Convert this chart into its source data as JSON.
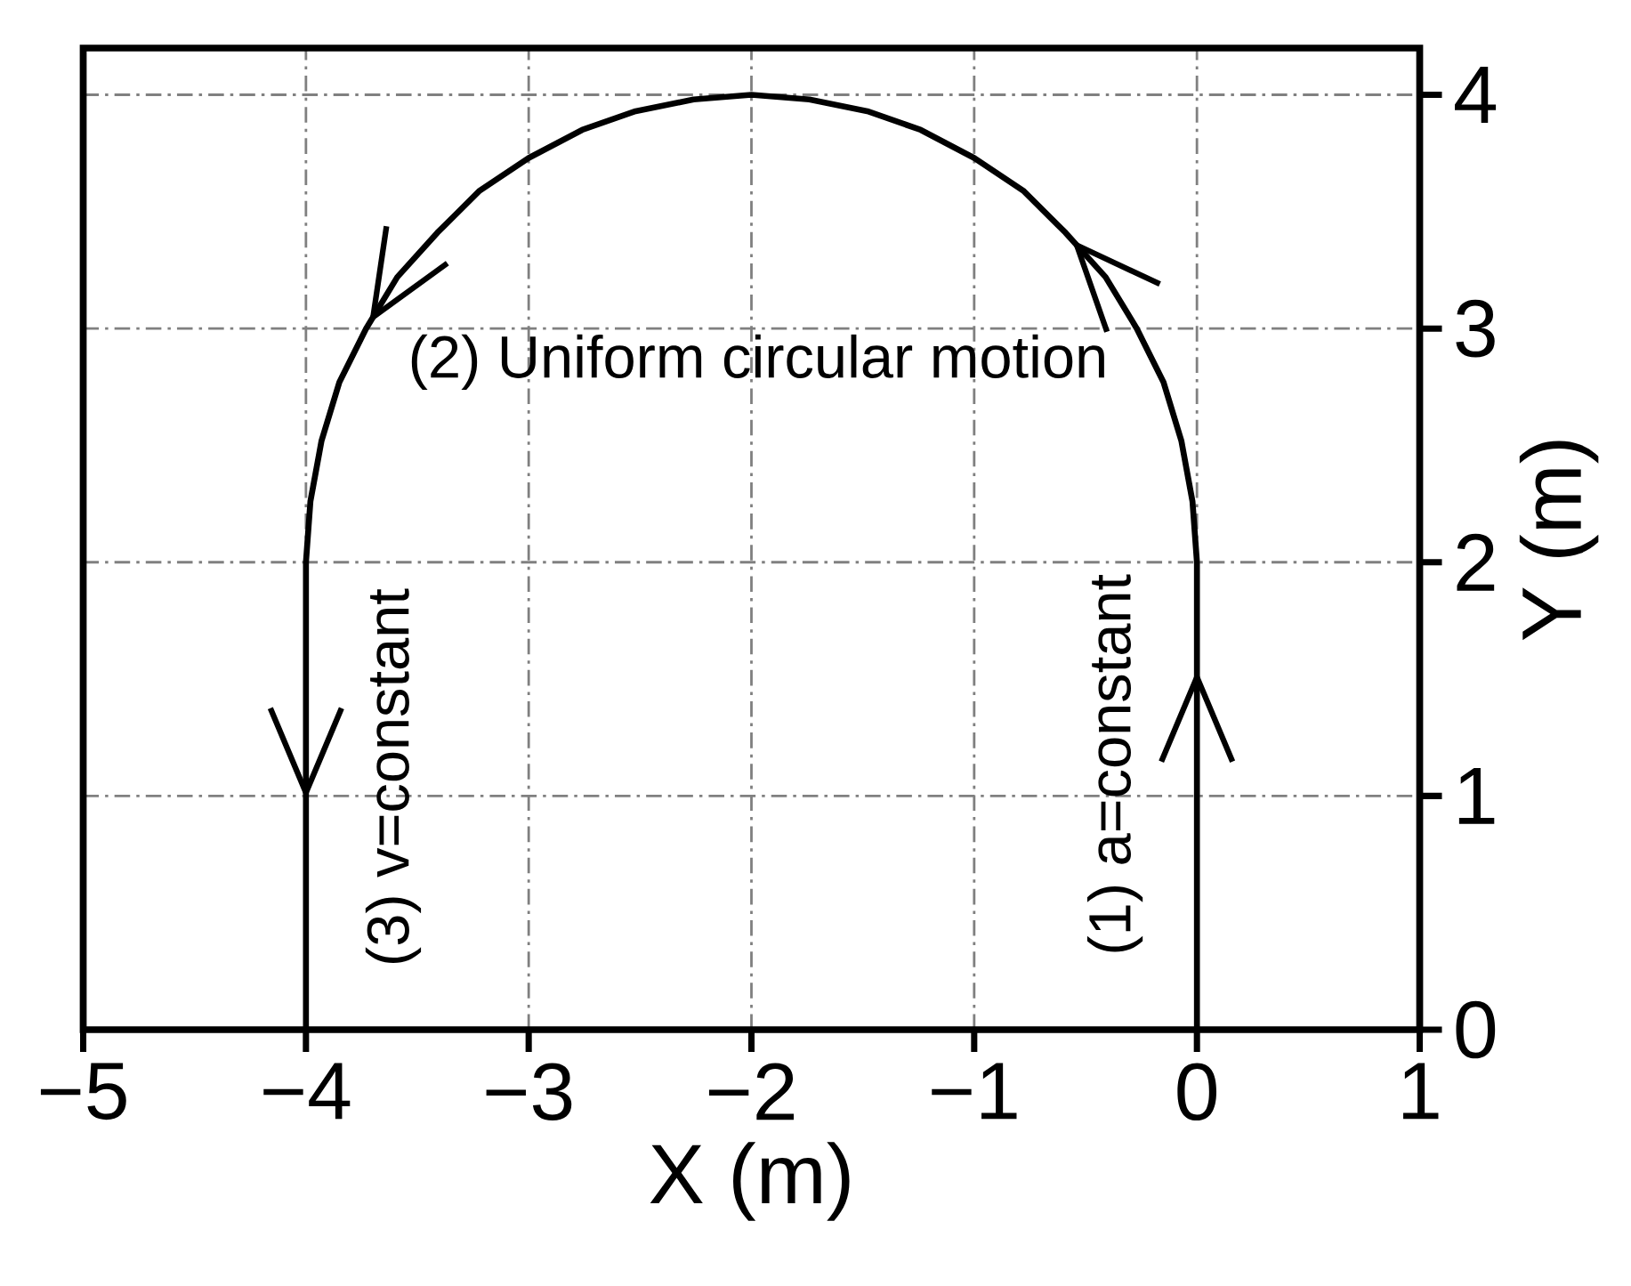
{
  "chart_data": {
    "type": "line",
    "xlabel": "X (m)",
    "ylabel": "Y (m)",
    "xlim": [
      -5,
      1
    ],
    "ylim": [
      0,
      4.2
    ],
    "xticks": [
      {
        "value": -5,
        "label": "−5"
      },
      {
        "value": -4,
        "label": "−4"
      },
      {
        "value": -3,
        "label": "−3"
      },
      {
        "value": -2,
        "label": "−2"
      },
      {
        "value": -1,
        "label": "−1"
      },
      0,
      1
    ],
    "yticks": [
      0,
      1,
      2,
      3,
      4
    ],
    "grid": true,
    "series": [
      {
        "color": "#000000",
        "x": [
          0,
          0,
          -0.02,
          -0.07,
          -0.15,
          -0.27,
          -0.41,
          -0.59,
          -0.78,
          -1.0,
          -1.24,
          -1.48,
          -1.74,
          -2.0,
          -2.26,
          -2.52,
          -2.76,
          -3.0,
          -3.22,
          -3.41,
          -3.59,
          -3.73,
          -3.85,
          -3.93,
          -3.98,
          -4,
          -4
        ],
        "values": [
          0,
          2,
          2.26,
          2.52,
          2.77,
          3.0,
          3.22,
          3.41,
          3.59,
          3.73,
          3.85,
          3.93,
          3.98,
          4.0,
          3.98,
          3.93,
          3.85,
          3.73,
          3.59,
          3.41,
          3.22,
          3.0,
          2.77,
          2.52,
          2.26,
          2,
          0
        ]
      }
    ],
    "annotations": [
      "(1) a=constant",
      "(2) Uniform circular motion",
      "(3) v=constant"
    ]
  }
}
